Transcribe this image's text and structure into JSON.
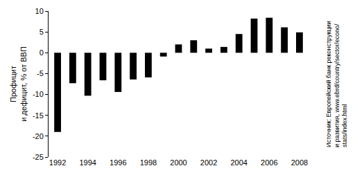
{
  "chart_data": {
    "type": "bar",
    "categories": [
      "1992",
      null,
      "1994",
      null,
      "1996",
      null,
      "1998",
      null,
      "2000",
      null,
      "2002",
      null,
      "2004",
      null,
      "2006",
      null,
      "2008"
    ],
    "values": [
      -19,
      -7.3,
      -10.3,
      -6.6,
      -9.4,
      -6.4,
      -5.9,
      -0.9,
      2.0,
      3.0,
      1.0,
      1.4,
      4.5,
      8.2,
      8.4,
      6.1,
      4.9
    ],
    "color": "#000000",
    "y_label": "Профицит\nи дефицит, % от ВВП",
    "annotations": [
      "Источник: Европейский банк реконструкции\nи развития, www.ebrd/country/sector/econo/\nstats/index.html"
    ],
    "ylim": [
      -25,
      10
    ],
    "yticks": [
      -25,
      -20,
      -15,
      -10,
      -5,
      0,
      5,
      10
    ],
    "grid": false
  }
}
